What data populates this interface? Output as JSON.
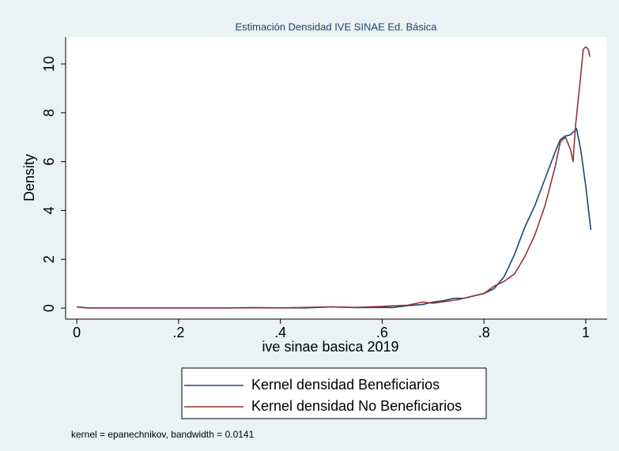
{
  "chart_data": {
    "type": "line",
    "title": "Estimación Densidad IVE SINAE Ed. Básica",
    "xlabel": "ive sinae basica 2019",
    "ylabel": "Density",
    "note": "kernel = epanechnikov, bandwidth = 0.0141",
    "xlim": [
      -0.022,
      1.042
    ],
    "ylim": [
      -0.45,
      11.1
    ],
    "xticks": [
      0,
      {
        "value": 0.2,
        "label": ".2"
      },
      {
        "value": 0.4,
        "label": ".4"
      },
      {
        "value": 0.6,
        "label": ".6"
      },
      {
        "value": 0.8,
        "label": ".8"
      },
      1
    ],
    "yticks": [
      0,
      2,
      4,
      6,
      8,
      10
    ],
    "grid": false,
    "legend": "bottom",
    "series": [
      {
        "name": "Kernel densidad Beneficiarios",
        "color": "#1a476f",
        "x": [
          0,
          0.02,
          0.1,
          0.2,
          0.3,
          0.35,
          0.4,
          0.45,
          0.5,
          0.55,
          0.6,
          0.62,
          0.65,
          0.68,
          0.7,
          0.72,
          0.74,
          0.76,
          0.78,
          0.8,
          0.82,
          0.84,
          0.86,
          0.88,
          0.9,
          0.92,
          0.94,
          0.95,
          0.96,
          0.97,
          0.982,
          0.99,
          1.0,
          1.01
        ],
        "values": [
          0.05,
          0.01,
          0.01,
          0.01,
          0.01,
          0.02,
          0.01,
          0.01,
          0.05,
          0.02,
          0.03,
          0.02,
          0.1,
          0.15,
          0.25,
          0.3,
          0.4,
          0.4,
          0.5,
          0.6,
          0.8,
          1.3,
          2.2,
          3.3,
          4.2,
          5.3,
          6.4,
          6.9,
          7.05,
          7.1,
          7.35,
          6.5,
          5.0,
          3.2
        ]
      },
      {
        "name": "Kernel densidad No Beneficiarios",
        "color": "#90353b",
        "x": [
          0,
          0.02,
          0.1,
          0.2,
          0.3,
          0.4,
          0.5,
          0.55,
          0.6,
          0.65,
          0.68,
          0.7,
          0.75,
          0.8,
          0.82,
          0.84,
          0.86,
          0.88,
          0.9,
          0.92,
          0.94,
          0.95,
          0.96,
          0.97,
          0.975,
          0.98,
          0.99,
          0.995,
          1.0,
          1.005,
          1.008
        ],
        "values": [
          0.05,
          0.01,
          0.01,
          0.01,
          0.01,
          0.01,
          0.05,
          0.03,
          0.07,
          0.12,
          0.25,
          0.2,
          0.35,
          0.6,
          0.9,
          1.1,
          1.4,
          2.1,
          3.0,
          4.2,
          5.8,
          6.8,
          7.0,
          6.5,
          6.0,
          7.5,
          9.5,
          10.6,
          10.7,
          10.6,
          10.3
        ]
      }
    ]
  }
}
